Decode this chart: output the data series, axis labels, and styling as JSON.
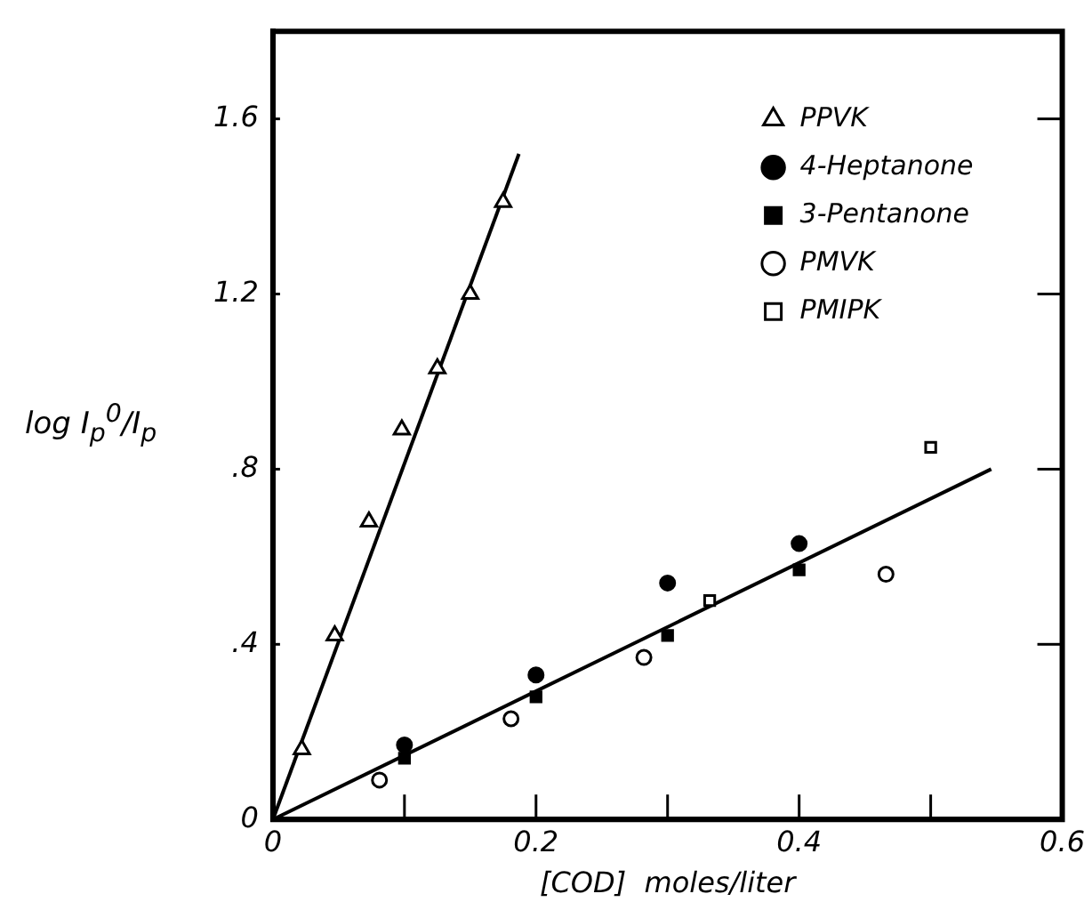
{
  "chart_data": {
    "type": "scatter",
    "xlabel": "[COD]  moles/liter",
    "ylabel": "log I$_{p}$$^{0}$/I$_{p}$",
    "xlim": [
      0,
      0.6
    ],
    "ylim": [
      0,
      1.8
    ],
    "xticks": [
      0,
      {
        "value": 0.1,
        "label": null
      },
      0.2,
      {
        "value": 0.3,
        "label": null
      },
      0.4,
      {
        "value": 0.5,
        "label": null
      },
      0.6
    ],
    "yticks": [
      0,
      {
        "value": 0.4,
        "label": ".4"
      },
      {
        "value": 0.8,
        "label": ".8"
      },
      1.2,
      1.6
    ],
    "grid": false,
    "legend": "top right",
    "series": [
      {
        "name": "PPVK",
        "color": "#000000",
        "marker": "triangle",
        "x": [
          0.022,
          0.047,
          0.073,
          0.098,
          0.125,
          0.15,
          0.175
        ],
        "values": [
          0.16,
          0.42,
          0.68,
          0.89,
          1.03,
          1.2,
          1.41
        ]
      },
      {
        "name": "4-Heptanone",
        "color": "#000000",
        "marker": "circle",
        "x": [
          0.1,
          0.2,
          0.3,
          0.4
        ],
        "values": [
          0.17,
          0.33,
          0.54,
          0.63
        ]
      },
      {
        "name": "3-Pentanone",
        "color": "#000000",
        "marker": "square",
        "x": [
          0.1,
          0.2,
          0.3,
          0.4
        ],
        "values": [
          0.14,
          0.28,
          0.42,
          0.57
        ]
      },
      {
        "name": "PMVK",
        "color": "#000000",
        "marker": "circle",
        "x": [
          0.081,
          0.181,
          0.282,
          0.466
        ],
        "values": [
          0.09,
          0.23,
          0.37,
          0.56
        ]
      },
      {
        "name": "PMIPK",
        "color": "#000000",
        "marker": "square",
        "x": [
          0.332,
          0.5
        ],
        "values": [
          0.5,
          0.85
        ]
      },
      {
        "type": "line",
        "color": "#000000",
        "marker": "none",
        "line_style": "solid",
        "x": [
          0,
          0.187
        ],
        "values": [
          0,
          1.52
        ]
      },
      {
        "type": "line",
        "color": "#000000",
        "marker": "none",
        "line_style": "solid",
        "x": [
          0,
          0.546
        ],
        "values": [
          0,
          0.8
        ]
      }
    ]
  }
}
